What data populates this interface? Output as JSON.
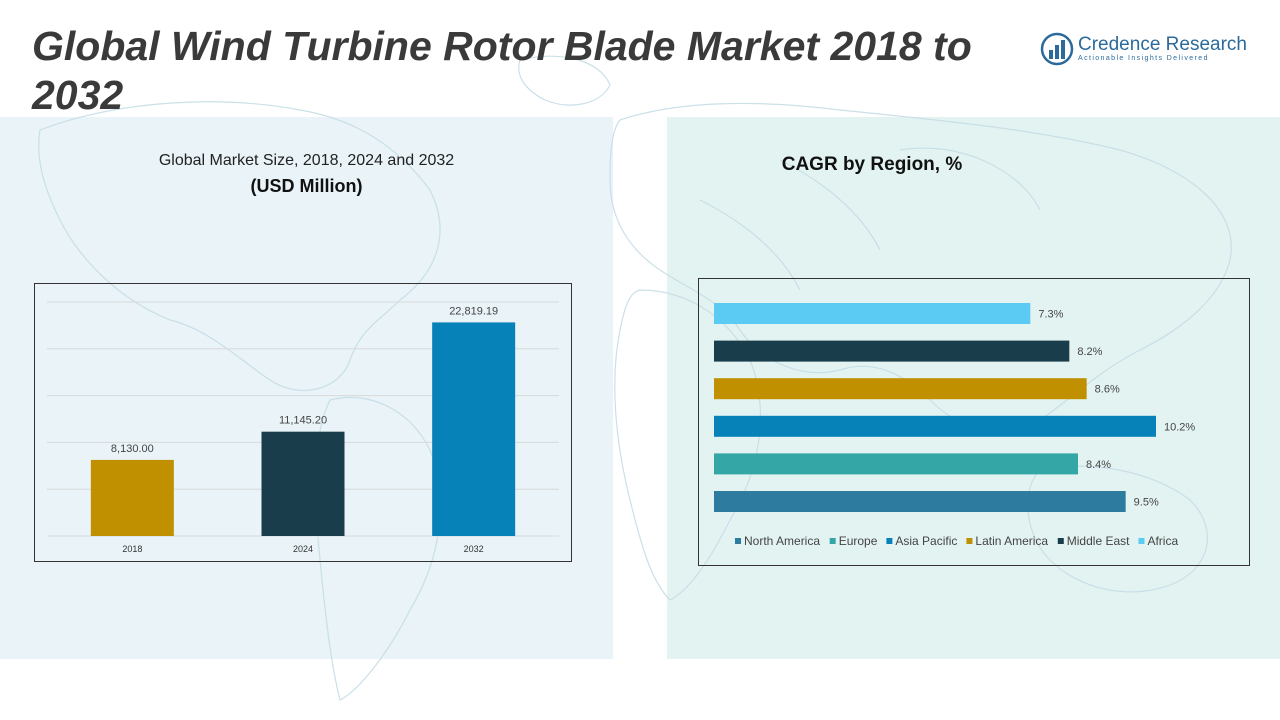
{
  "header": {
    "title": "Global Wind Turbine Rotor Blade Market 2018 to 2032",
    "logo_name": "Credence Research",
    "logo_tagline": "Actionable Insights Delivered"
  },
  "left_panel": {
    "subtitle": "Global Market Size, 2018, 2024 and 2032",
    "unit": "(USD Million)"
  },
  "right_panel": {
    "title": "CAGR by Region, %"
  },
  "chart_data": [
    {
      "type": "bar",
      "categories": [
        "2018",
        "2024",
        "2032"
      ],
      "values": [
        8130.0,
        11145.2,
        22819.19
      ],
      "value_labels": [
        "8,130.00",
        "11,145.20",
        "22,819.19"
      ],
      "colors": [
        "#c09000",
        "#1a3d4c",
        "#0682b8"
      ],
      "ylim": [
        0,
        25000
      ],
      "grid": true,
      "title": "Global Market Size, 2018, 2024 and 2032",
      "ylabel": "(USD Million)"
    },
    {
      "type": "bar",
      "orientation": "horizontal",
      "categories": [
        "Africa",
        "Middle East",
        "Latin America",
        "Asia Pacific",
        "Europe",
        "North America"
      ],
      "values": [
        7.3,
        8.2,
        8.6,
        10.2,
        8.4,
        9.5
      ],
      "value_labels": [
        "7.3%",
        "8.2%",
        "8.6%",
        "10.2%",
        "8.4%",
        "9.5%"
      ],
      "colors": [
        "#5ccbf3",
        "#1a3d4c",
        "#c09000",
        "#0682b8",
        "#35a6a6",
        "#2e7ba0"
      ],
      "legend_order": [
        "North America",
        "Europe",
        "Asia Pacific",
        "Latin America",
        "Middle East",
        "Africa"
      ],
      "legend_colors": [
        "#2e7ba0",
        "#35a6a6",
        "#0682b8",
        "#c09000",
        "#1a3d4c",
        "#5ccbf3"
      ],
      "legend_position": "bottom",
      "xlim": [
        0,
        10.2
      ],
      "title": "CAGR by Region, %"
    }
  ]
}
